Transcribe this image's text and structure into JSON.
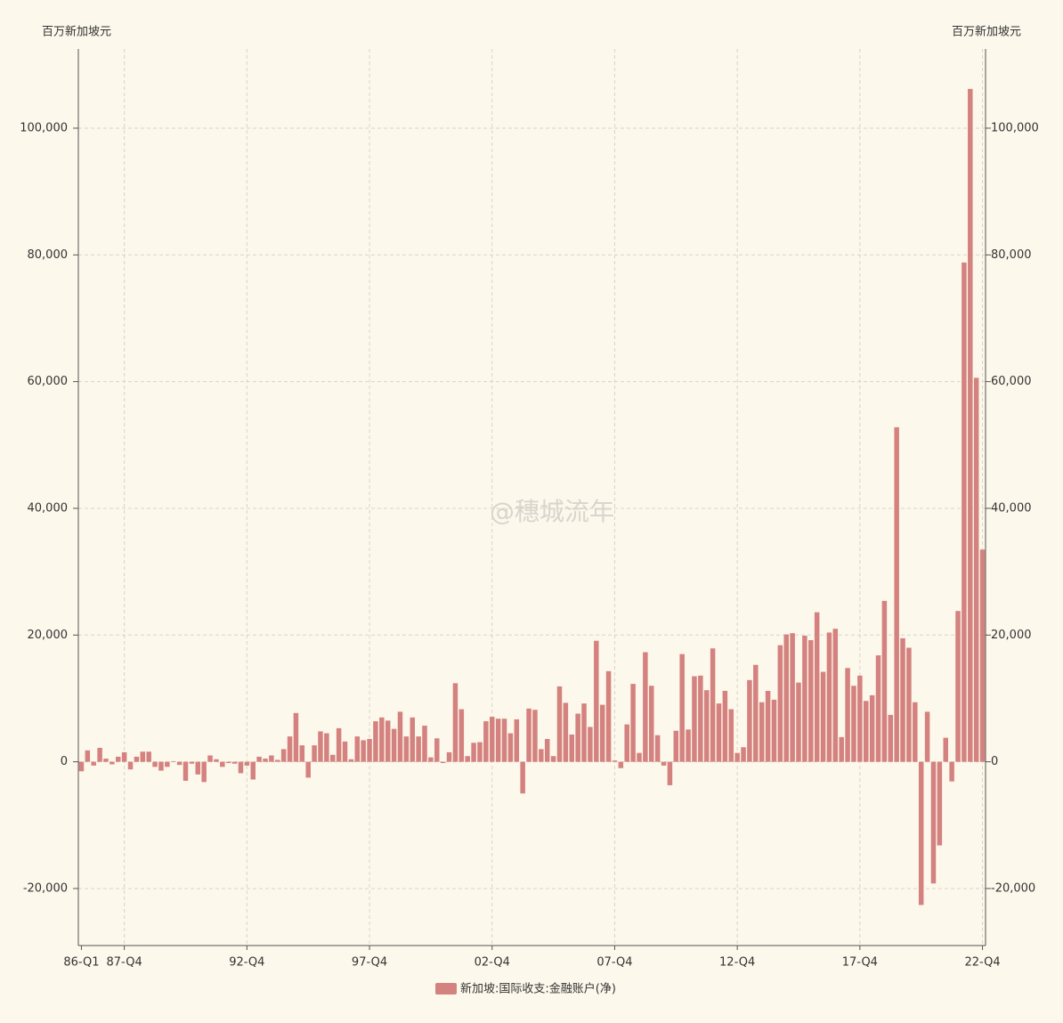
{
  "chart_data": {
    "type": "bar",
    "y_label": "百万新加坡元",
    "y2_label": "百万新加坡元",
    "watermark": "@穗城流年",
    "categories": [
      "86-Q1",
      null,
      null,
      null,
      null,
      null,
      null,
      "87-Q4",
      null,
      null,
      null,
      null,
      null,
      null,
      null,
      null,
      null,
      null,
      null,
      null,
      null,
      null,
      null,
      null,
      null,
      null,
      null,
      "92-Q4",
      null,
      null,
      null,
      null,
      null,
      null,
      null,
      null,
      null,
      null,
      null,
      null,
      null,
      null,
      null,
      null,
      null,
      null,
      null,
      "97-Q4",
      null,
      null,
      null,
      null,
      null,
      null,
      null,
      null,
      null,
      null,
      null,
      null,
      null,
      null,
      null,
      null,
      null,
      null,
      null,
      "02-Q4",
      null,
      null,
      null,
      null,
      null,
      null,
      null,
      null,
      null,
      null,
      null,
      null,
      null,
      null,
      null,
      null,
      null,
      null,
      null,
      "07-Q4",
      null,
      null,
      null,
      null,
      null,
      null,
      null,
      null,
      null,
      null,
      null,
      null,
      null,
      null,
      null,
      null,
      null,
      null,
      null,
      "12-Q4",
      null,
      null,
      null,
      null,
      null,
      null,
      null,
      null,
      null,
      null,
      null,
      null,
      null,
      null,
      null,
      null,
      null,
      null,
      null,
      "17-Q4",
      null,
      null,
      null,
      null,
      null,
      null,
      null,
      null,
      null,
      null,
      null,
      null,
      null,
      null,
      null,
      null,
      null,
      null,
      null,
      "22-Q4"
    ],
    "series": [
      {
        "name": "新加坡:国际收支:金融账户(净)",
        "color": "#d4827f",
        "values": [
          -1500,
          1800,
          -600,
          2200,
          500,
          -400,
          800,
          1500,
          -1200,
          800,
          1600,
          1600,
          -800,
          -1400,
          -800,
          100,
          -500,
          -3000,
          -300,
          -2000,
          -3200,
          1000,
          400,
          -800,
          -200,
          -300,
          -1800,
          -600,
          -2800,
          800,
          500,
          1000,
          300,
          2000,
          4000,
          7700,
          2600,
          -2500,
          2600,
          4800,
          4500,
          1100,
          5300,
          3200,
          400,
          4000,
          3400,
          3600,
          6400,
          7000,
          6500,
          5200,
          7900,
          4000,
          7000,
          4000,
          5700,
          700,
          3700,
          -200,
          1500,
          12400,
          8300,
          900,
          3000,
          3100,
          6400,
          7100,
          6800,
          6800,
          4500,
          6700,
          -5000,
          8400,
          8200,
          2000,
          3600,
          900,
          11900,
          9300,
          4300,
          7600,
          9200,
          5500,
          19100,
          9000,
          14300,
          200,
          -1000,
          5900,
          12300,
          1400,
          17300,
          12000,
          4200,
          -600,
          -3700,
          4900,
          17000,
          5100,
          13500,
          13600,
          11300,
          17900,
          9200,
          11200,
          8300,
          1400,
          2300,
          12900,
          15300,
          9400,
          11200,
          9800,
          18400,
          20100,
          20300,
          12500,
          19900,
          19200,
          23600,
          14200,
          20400,
          21000,
          3900,
          14800,
          12000,
          13600,
          9600,
          10500,
          16800,
          25400,
          7400,
          52800,
          19500,
          18000,
          9400,
          -22600,
          7900,
          -19200,
          -13200,
          3800,
          -3100,
          23800,
          78800,
          106200,
          60600,
          33500
        ]
      }
    ],
    "ylim": [
      -29000,
      112500
    ],
    "yticks": [
      {
        "value": -20000,
        "label": "-20,000"
      },
      0,
      {
        "value": 20000,
        "label": "20,000"
      },
      {
        "value": 40000,
        "label": "40,000"
      },
      {
        "value": 60000,
        "label": "60,000"
      },
      {
        "value": 80000,
        "label": "80,000"
      },
      {
        "value": 100000,
        "label": "100,000"
      }
    ],
    "y2lim": [
      -29000,
      112500
    ],
    "y2ticks": [
      {
        "value": -20000,
        "label": "-20,000"
      },
      0,
      {
        "value": 20000,
        "label": "20,000"
      },
      {
        "value": 40000,
        "label": "40,000"
      },
      {
        "value": 60000,
        "label": "60,000"
      },
      {
        "value": 80000,
        "label": "80,000"
      },
      {
        "value": 100000,
        "label": "100,000"
      }
    ],
    "grid": true,
    "legend": "bottom"
  }
}
